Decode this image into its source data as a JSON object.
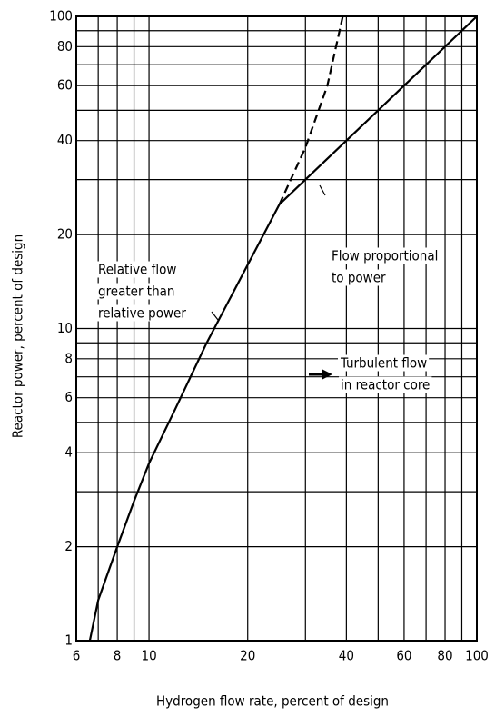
{
  "chart_data": {
    "type": "line",
    "log_x": true,
    "log_y": true,
    "grid": true,
    "xlabel": "Hydrogen flow rate, percent of design",
    "ylabel": "Reactor power, percent of design",
    "xlim": [
      6,
      100
    ],
    "ylim": [
      1,
      100
    ],
    "xticks": [
      6,
      8,
      10,
      20,
      40,
      60,
      80,
      100
    ],
    "yticks": [
      1,
      2,
      4,
      6,
      8,
      10,
      20,
      40,
      60,
      80,
      100
    ],
    "x_minor_ticks": [
      7,
      9,
      30,
      50,
      70,
      90
    ],
    "y_minor_ticks": [
      3,
      5,
      7,
      9,
      30,
      50,
      70,
      90
    ],
    "series": [
      {
        "color": "#000000",
        "dash": false,
        "x": [
          6.6,
          7,
          8,
          9,
          10,
          12,
          15,
          20,
          25
        ],
        "values": [
          1,
          1.35,
          2,
          2.8,
          3.7,
          5.5,
          9,
          16,
          25
        ]
      },
      {
        "color": "#000000",
        "dash": false,
        "x": [
          25,
          40,
          60,
          100
        ],
        "values": [
          25,
          40,
          60,
          100
        ]
      },
      {
        "color": "#000000",
        "dash": true,
        "x": [
          25,
          30,
          35,
          39
        ],
        "values": [
          25,
          38,
          60,
          100
        ]
      }
    ],
    "annotations": [
      {
        "lines": [
          "Flow proportional",
          "to power"
        ]
      },
      {
        "lines": [
          "Relative flow",
          "greater than",
          "relative power"
        ]
      },
      {
        "lines": [
          "Turbulent flow",
          "in reactor core"
        ]
      }
    ]
  }
}
